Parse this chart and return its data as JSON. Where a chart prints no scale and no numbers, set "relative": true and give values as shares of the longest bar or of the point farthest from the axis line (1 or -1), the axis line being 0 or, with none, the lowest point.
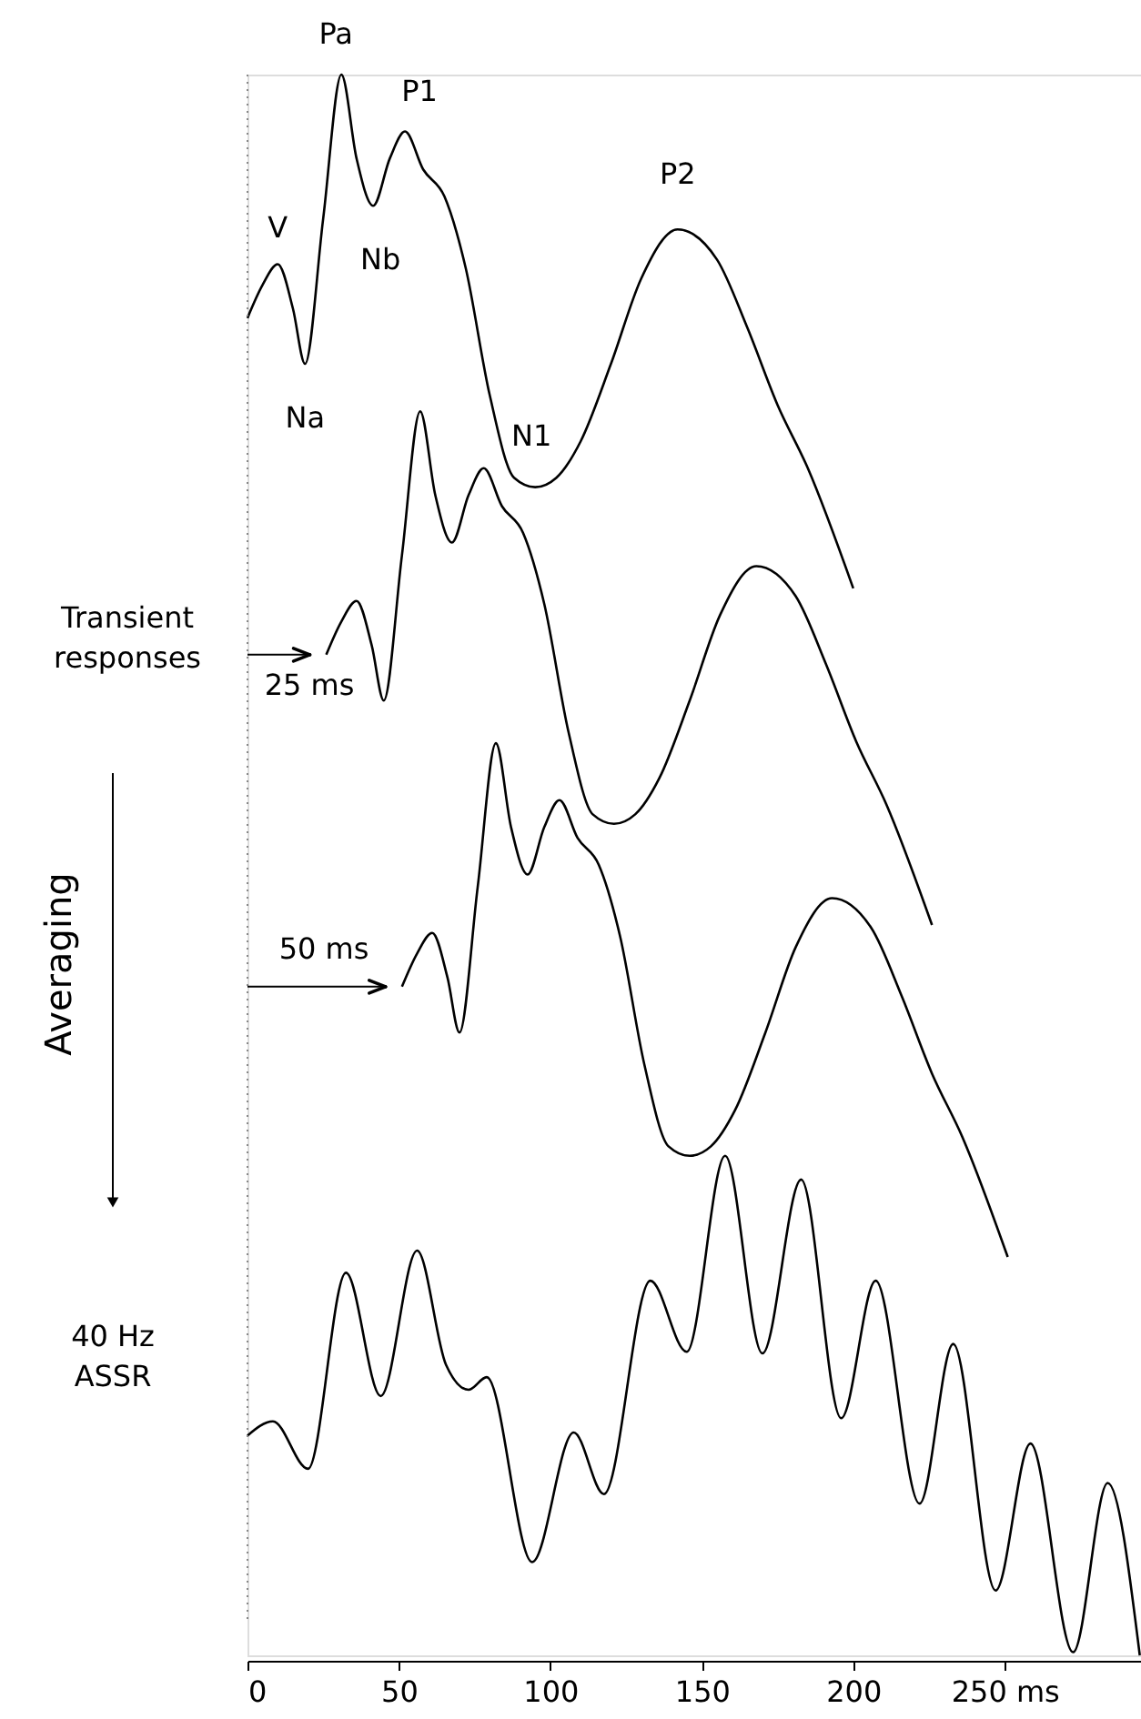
{
  "chart_data": {
    "type": "line",
    "relative": true,
    "xlim": [
      0,
      295
    ],
    "xticks": [
      0,
      50,
      100,
      150,
      200,
      {
        "value": 250,
        "label": "250 ms"
      }
    ],
    "grid": false,
    "marker": "none",
    "line_style": "solid",
    "series": [
      {
        "color": "#000000",
        "x": [
          0,
          5,
          10,
          15,
          19,
          25,
          31,
          36,
          41.5,
          47,
          52,
          58,
          65,
          72,
          80,
          88,
          95,
          102,
          110,
          120,
          130,
          142,
          155,
          165,
          175,
          185,
          200
        ],
        "values": [
          0.846,
          0.867,
          0.88,
          0.852,
          0.817,
          0.909,
          1.0,
          0.947,
          0.917,
          0.947,
          0.964,
          0.94,
          0.923,
          0.878,
          0.797,
          0.745,
          0.739,
          0.745,
          0.768,
          0.817,
          0.871,
          0.902,
          0.883,
          0.84,
          0.791,
          0.751,
          0.675
        ]
      },
      {
        "color": "#000000",
        "x": [
          26,
          31,
          36,
          41,
          45,
          51,
          57,
          62,
          67.5,
          73,
          78,
          84,
          91,
          98,
          106,
          114,
          121,
          128,
          136,
          146,
          156,
          168,
          181,
          191,
          201,
          211,
          226
        ],
        "values": [
          0.633,
          0.654,
          0.667,
          0.639,
          0.604,
          0.696,
          0.787,
          0.734,
          0.704,
          0.734,
          0.751,
          0.727,
          0.71,
          0.665,
          0.584,
          0.532,
          0.526,
          0.532,
          0.555,
          0.604,
          0.658,
          0.689,
          0.67,
          0.627,
          0.578,
          0.538,
          0.462
        ]
      },
      {
        "color": "#000000",
        "x": [
          51,
          56,
          61,
          66,
          70,
          76,
          82,
          87,
          92.5,
          98,
          103,
          109,
          116,
          123,
          131,
          139,
          146,
          153,
          161,
          171,
          181,
          193,
          206,
          216,
          226,
          236,
          251
        ],
        "values": [
          0.423,
          0.444,
          0.457,
          0.429,
          0.394,
          0.486,
          0.577,
          0.524,
          0.494,
          0.524,
          0.541,
          0.517,
          0.5,
          0.455,
          0.374,
          0.322,
          0.316,
          0.322,
          0.345,
          0.394,
          0.448,
          0.479,
          0.46,
          0.417,
          0.368,
          0.328,
          0.252
        ]
      },
      {
        "color": "#000000",
        "x": [
          0,
          8.4,
          20,
          32.5,
          44,
          56,
          65.5,
          73,
          79,
          94,
          107.7,
          117.7,
          133,
          145,
          157.7,
          170,
          182.8,
          196,
          207.4,
          221.9,
          233,
          247,
          258.5,
          272.6,
          284,
          294.6
        ],
        "values": [
          0.139,
          0.148,
          0.118,
          0.242,
          0.164,
          0.256,
          0.184,
          0.168,
          0.176,
          0.059,
          0.141,
          0.102,
          0.237,
          0.192,
          0.316,
          0.191,
          0.301,
          0.15,
          0.237,
          0.096,
          0.197,
          0.041,
          0.134,
          0.002,
          0.109,
          0.0
        ]
      }
    ],
    "ref_lines": [
      {
        "axis": "x",
        "value": 0,
        "line_style": "dotted",
        "color": "#888888"
      }
    ],
    "annotations": [
      {
        "text": "Pa",
        "x": 31,
        "y": 1.0
      },
      {
        "text": "P1",
        "x": 52,
        "y": 0.964
      },
      {
        "text": "V",
        "x": 10,
        "y": 0.88
      },
      {
        "text": "Nb",
        "x": 41.5,
        "y": 0.917
      },
      {
        "text": "P2",
        "x": 142,
        "y": 0.902
      },
      {
        "text": "Na",
        "x": 19,
        "y": 0.817
      },
      {
        "text": "N1",
        "x": 95,
        "y": 0.739
      },
      "Transient\nresponses",
      "25 ms",
      "50 ms",
      "Averaging",
      "40 Hz\nASSR"
    ]
  }
}
